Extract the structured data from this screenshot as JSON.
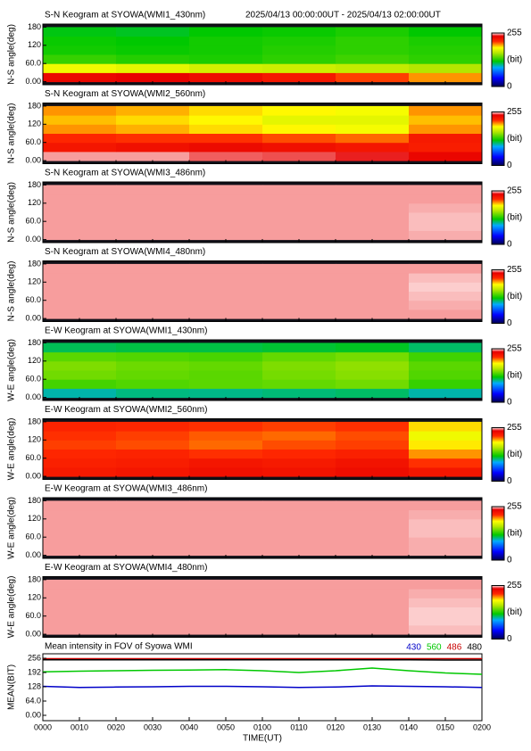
{
  "chart_data": [
    {
      "type": "heatmap",
      "title": "S-N Keogram at SYOWA(WMI1_430nm)",
      "subtitle": "2025/04/13 00:00:00UT - 2025/04/13 02:00:00UT",
      "ylabel": "N-S angle(deg)",
      "ylim": [
        -10,
        190
      ],
      "yticks": [
        {
          "value": 0,
          "label": "0.00"
        },
        {
          "value": 60,
          "label": "60.0"
        },
        120,
        180
      ],
      "clim": [
        0,
        255
      ],
      "cticks": [
        0,
        255
      ],
      "cunit": "(bit)",
      "z": [
        [
          235,
          238,
          232,
          225,
          212,
          200
        ],
        [
          180,
          176,
          170,
          168,
          165,
          160
        ],
        [
          132,
          128,
          126,
          130,
          134,
          130
        ],
        [
          124,
          122,
          124,
          128,
          130,
          128
        ],
        [
          122,
          120,
          124,
          126,
          130,
          126
        ],
        [
          118,
          116,
          120,
          122,
          126,
          120
        ]
      ]
    },
    {
      "type": "heatmap",
      "title": "S-N Keogram at SYOWA(WMI2_560nm)",
      "ylabel": "N-S angle(deg)",
      "ylim": [
        -10,
        190
      ],
      "yticks": [
        {
          "value": 0,
          "label": "0.00"
        },
        {
          "value": 60,
          "label": "60.0"
        },
        120,
        180
      ],
      "clim": [
        0,
        255
      ],
      "cticks": [
        0,
        255
      ],
      "cunit": "(bit)",
      "z": [
        [
          250,
          250,
          246,
          245,
          242,
          236
        ],
        [
          226,
          230,
          234,
          230,
          226,
          222
        ],
        [
          216,
          214,
          214,
          210,
          206,
          224
        ],
        [
          200,
          196,
          190,
          186,
          182,
          200
        ],
        [
          194,
          190,
          186,
          176,
          176,
          194
        ],
        [
          200,
          196,
          190,
          186,
          182,
          200
        ]
      ]
    },
    {
      "type": "heatmap",
      "title": "S-N Keogram at SYOWA(WMI3_486nm)",
      "ylabel": "N-S angle(deg)",
      "ylim": [
        -10,
        190
      ],
      "yticks": [
        {
          "value": 0,
          "label": "0.00"
        },
        {
          "value": 60,
          "label": "60.0"
        },
        120,
        180
      ],
      "clim": [
        0,
        255
      ],
      "cticks": [
        0,
        255
      ],
      "cunit": "(bit)",
      "z": [
        [
          250,
          250,
          250,
          250,
          250,
          251
        ],
        [
          250,
          250,
          250,
          250,
          250,
          252
        ],
        [
          250,
          250,
          250,
          250,
          250,
          252
        ],
        [
          250,
          250,
          250,
          250,
          250,
          251
        ],
        [
          250,
          250,
          250,
          250,
          250,
          250
        ],
        [
          250,
          250,
          250,
          250,
          250,
          250
        ]
      ]
    },
    {
      "type": "heatmap",
      "title": "S-N Keogram at SYOWA(WMI4_480nm)",
      "ylabel": "N-S angle(deg)",
      "ylim": [
        -10,
        190
      ],
      "yticks": [
        {
          "value": 0,
          "label": "0.00"
        },
        {
          "value": 60,
          "label": "60.0"
        },
        120,
        180
      ],
      "clim": [
        0,
        255
      ],
      "cticks": [
        0,
        255
      ],
      "cunit": "(bit)",
      "z": [
        [
          250,
          250,
          250,
          250,
          250,
          250
        ],
        [
          250,
          250,
          250,
          250,
          250,
          251
        ],
        [
          250,
          250,
          250,
          250,
          250,
          252
        ],
        [
          250,
          250,
          250,
          250,
          250,
          253
        ],
        [
          250,
          250,
          250,
          250,
          250,
          252
        ],
        [
          250,
          250,
          250,
          250,
          250,
          250
        ]
      ]
    },
    {
      "type": "heatmap",
      "title": "E-W Keogram at SYOWA(WMI1_430nm)",
      "ylabel": "W-E angle(deg)",
      "ylim": [
        -10,
        190
      ],
      "yticks": [
        {
          "value": 0,
          "label": "0.00"
        },
        {
          "value": 60,
          "label": "60.0"
        },
        120,
        180
      ],
      "clim": [
        0,
        255
      ],
      "cticks": [
        0,
        255
      ],
      "cunit": "(bit)",
      "z": [
        [
          100,
          105,
          104,
          106,
          108,
          100
        ],
        [
          135,
          138,
          140,
          142,
          145,
          132
        ],
        [
          145,
          142,
          140,
          146,
          150,
          138
        ],
        [
          148,
          144,
          142,
          148,
          152,
          140
        ],
        [
          140,
          138,
          136,
          142,
          146,
          134
        ],
        [
          110,
          112,
          112,
          114,
          116,
          108
        ]
      ]
    },
    {
      "type": "heatmap",
      "title": "E-W Keogram at SYOWA(WMI2_560nm)",
      "ylabel": "W-E angle(deg)",
      "ylim": [
        -10,
        190
      ],
      "yticks": [
        {
          "value": 0,
          "label": "0.00"
        },
        {
          "value": 60,
          "label": "60.0"
        },
        120,
        180
      ],
      "clim": [
        0,
        255
      ],
      "cticks": [
        0,
        255
      ],
      "cunit": "(bit)",
      "z": [
        [
          224,
          226,
          230,
          228,
          232,
          226
        ],
        [
          220,
          222,
          226,
          224,
          228,
          214
        ],
        [
          216,
          218,
          214,
          216,
          220,
          200
        ],
        [
          212,
          210,
          206,
          210,
          212,
          188
        ],
        [
          214,
          212,
          208,
          206,
          210,
          180
        ],
        [
          218,
          216,
          214,
          212,
          214,
          190
        ]
      ]
    },
    {
      "type": "heatmap",
      "title": "E-W Keogram at SYOWA(WMI3_486nm)",
      "ylabel": "W-E angle(deg)",
      "ylim": [
        -10,
        190
      ],
      "yticks": [
        {
          "value": 0,
          "label": "0.00"
        },
        {
          "value": 60,
          "label": "60.0"
        },
        120,
        180
      ],
      "clim": [
        0,
        255
      ],
      "cticks": [
        0,
        255
      ],
      "cunit": "(bit)",
      "z": [
        [
          250,
          250,
          250,
          250,
          250,
          251
        ],
        [
          250,
          250,
          250,
          250,
          250,
          251
        ],
        [
          250,
          250,
          250,
          250,
          250,
          252
        ],
        [
          250,
          250,
          250,
          250,
          250,
          252
        ],
        [
          250,
          250,
          250,
          250,
          250,
          251
        ],
        [
          250,
          250,
          250,
          250,
          250,
          250
        ]
      ]
    },
    {
      "type": "heatmap",
      "title": "E-W Keogram at SYOWA(WMI4_480nm)",
      "ylabel": "W-E angle(deg)",
      "ylim": [
        -10,
        190
      ],
      "yticks": [
        {
          "value": 0,
          "label": "0.00"
        },
        {
          "value": 60,
          "label": "60.0"
        },
        120,
        180
      ],
      "clim": [
        0,
        255
      ],
      "cticks": [
        0,
        255
      ],
      "cunit": "(bit)",
      "z": [
        [
          250,
          250,
          250,
          250,
          250,
          252
        ],
        [
          250,
          250,
          250,
          250,
          250,
          253
        ],
        [
          250,
          250,
          250,
          250,
          250,
          253
        ],
        [
          250,
          250,
          250,
          250,
          250,
          252
        ],
        [
          250,
          250,
          250,
          250,
          250,
          251
        ],
        [
          250,
          250,
          250,
          250,
          250,
          250
        ]
      ]
    },
    {
      "type": "line",
      "title": "Mean intensity in FOV of Syowa WMI",
      "ylabel": "MEAN(BIT)",
      "xlabel": "TIME(UT)",
      "x": [
        0,
        10,
        20,
        30,
        40,
        50,
        60,
        70,
        80,
        90,
        100,
        110,
        120
      ],
      "xlim": [
        0,
        120
      ],
      "xticks": [
        {
          "value": 0,
          "label": "0000"
        },
        {
          "value": 10,
          "label": "0010"
        },
        {
          "value": 20,
          "label": "0020"
        },
        {
          "value": 30,
          "label": "0030"
        },
        {
          "value": 40,
          "label": "0040"
        },
        {
          "value": 50,
          "label": "0050"
        },
        {
          "value": 60,
          "label": "0100"
        },
        {
          "value": 70,
          "label": "0110"
        },
        {
          "value": 80,
          "label": "0120"
        },
        {
          "value": 90,
          "label": "0130"
        },
        {
          "value": 100,
          "label": "0140"
        },
        {
          "value": 110,
          "label": "0150"
        },
        {
          "value": 120,
          "label": "0200"
        }
      ],
      "ylim": [
        -24,
        276
      ],
      "yticks": [
        {
          "value": 0,
          "label": "0.00"
        },
        {
          "value": 64,
          "label": "64.0"
        },
        128,
        192,
        256
      ],
      "series": [
        {
          "name": "430",
          "color": "#0000c8",
          "values": [
            130,
            125,
            127,
            128,
            130,
            130,
            128,
            125,
            127,
            132,
            130,
            128,
            125
          ]
        },
        {
          "name": "560",
          "color": "#00c800",
          "values": [
            195,
            198,
            200,
            202,
            203,
            205,
            200,
            192,
            200,
            212,
            200,
            190,
            184
          ]
        },
        {
          "name": "486",
          "color": "#c80000",
          "values": [
            254,
            254,
            254,
            254,
            254,
            254,
            254,
            254,
            254,
            254,
            254,
            254,
            254
          ]
        },
        {
          "name": "480",
          "color": "#000000",
          "values": [
            249,
            249,
            249,
            249,
            249,
            249,
            249,
            249,
            249,
            249,
            249,
            248,
            248
          ]
        }
      ]
    }
  ]
}
